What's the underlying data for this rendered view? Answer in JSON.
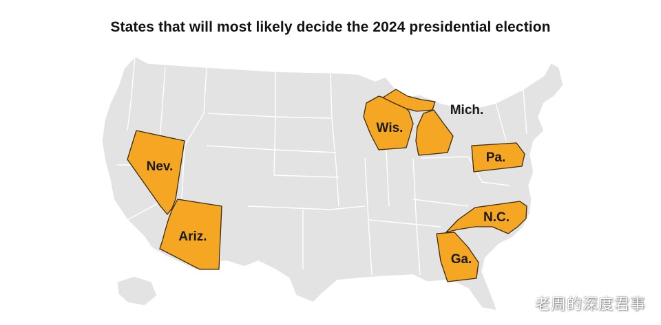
{
  "title": "States that will most likely decide the 2024 presidential election",
  "watermark": "老周的深度君事",
  "colors": {
    "background": "#ffffff",
    "base_land": "#e3e3e3",
    "state_border": "#ffffff",
    "highlight_fill": "#f5a623",
    "highlight_stroke": "#3a2a10",
    "label_text": "#1a1a1a"
  },
  "highlighted_states": [
    {
      "id": "nevada",
      "label": "Nev."
    },
    {
      "id": "arizona",
      "label": "Ariz."
    },
    {
      "id": "wisconsin",
      "label": "Wis."
    },
    {
      "id": "michigan",
      "label": "Mich."
    },
    {
      "id": "pennsylvania",
      "label": "Pa."
    },
    {
      "id": "north-carolina",
      "label": "N.C."
    },
    {
      "id": "georgia",
      "label": "Ga."
    }
  ]
}
